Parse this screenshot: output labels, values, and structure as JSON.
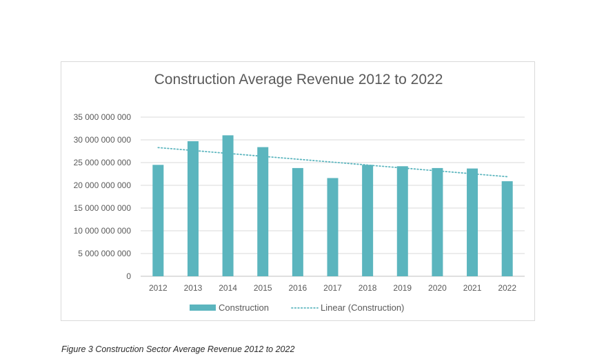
{
  "chart_data": {
    "type": "bar",
    "title": "Construction Average Revenue 2012 to 2022",
    "xlabel": "",
    "ylabel": "",
    "categories": [
      "2012",
      "2013",
      "2014",
      "2015",
      "2016",
      "2017",
      "2018",
      "2019",
      "2020",
      "2021",
      "2022"
    ],
    "series": [
      {
        "name": "Construction",
        "values": [
          24500000000,
          29700000000,
          31000000000,
          28400000000,
          23800000000,
          21600000000,
          24500000000,
          24200000000,
          23800000000,
          23700000000,
          20900000000
        ],
        "color": "#5bb5be"
      }
    ],
    "trendline": {
      "name": "Linear (Construction)",
      "start": 28300000000,
      "end": 21900000000,
      "color": "#5bb5be",
      "style": "dotted"
    },
    "ylim": [
      0,
      35000000000
    ],
    "yticks": [
      0,
      5000000000,
      10000000000,
      15000000000,
      20000000000,
      25000000000,
      30000000000,
      35000000000
    ],
    "ytick_labels": [
      "0",
      "5 000 000 000",
      "10 000 000 000",
      "15 000 000 000",
      "20 000 000 000",
      "25 000 000 000",
      "30 000 000 000",
      "35 000 000 000"
    ],
    "grid": true,
    "legend_position": "bottom"
  },
  "caption": "Figure 3 Construction Sector Average Revenue 2012 to 2022"
}
